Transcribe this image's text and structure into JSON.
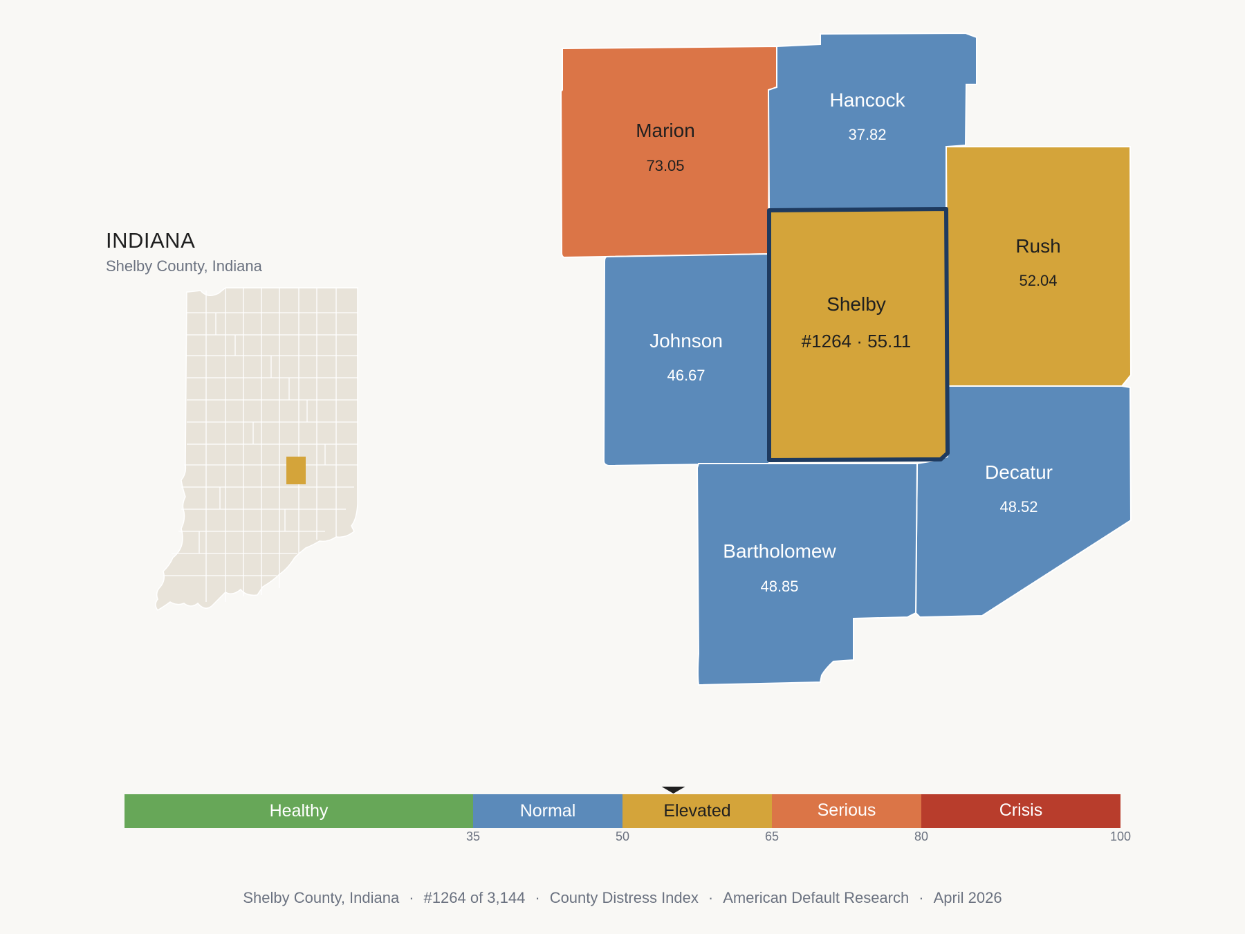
{
  "inset": {
    "title": "INDIANA",
    "subtitle": "Shelby County, Indiana"
  },
  "colors": {
    "healthy": "#67a758",
    "normal": "#5b8aba",
    "elevated": "#d4a43a",
    "serious": "#db7547",
    "crisis": "#b83d2c",
    "highlight_border": "#1e3a5f",
    "inset_fill": "#e8e3d9"
  },
  "counties": {
    "marion": {
      "name": "Marion",
      "value": "73.05",
      "category": "serious"
    },
    "hancock": {
      "name": "Hancock",
      "value": "37.82",
      "category": "normal"
    },
    "rush": {
      "name": "Rush",
      "value": "52.04",
      "category": "elevated"
    },
    "johnson": {
      "name": "Johnson",
      "value": "46.67",
      "category": "normal"
    },
    "shelby": {
      "name": "Shelby",
      "value": "#1264 · 55.11",
      "category": "elevated",
      "highlighted": true
    },
    "decatur": {
      "name": "Decatur",
      "value": "48.52",
      "category": "normal"
    },
    "bartholomew": {
      "name": "Bartholomew",
      "value": "48.85",
      "category": "normal"
    }
  },
  "legend": {
    "bands": [
      {
        "label": "Healthy",
        "from": 0,
        "to": 35,
        "color": "#67a758"
      },
      {
        "label": "Normal",
        "from": 35,
        "to": 50,
        "color": "#5b8aba"
      },
      {
        "label": "Elevated",
        "from": 50,
        "to": 65,
        "color": "#d4a43a"
      },
      {
        "label": "Serious",
        "from": 65,
        "to": 80,
        "color": "#db7547"
      },
      {
        "label": "Crisis",
        "from": 80,
        "to": 100,
        "color": "#b83d2c"
      }
    ],
    "ticks": [
      "35",
      "50",
      "65",
      "80",
      "100"
    ],
    "marker_value": 55.11
  },
  "footer": {
    "location": "Shelby County, Indiana",
    "rank": "#1264 of 3,144",
    "index": "County Distress Index",
    "source": "American Default Research",
    "date": "April 2026",
    "separator": "·"
  }
}
